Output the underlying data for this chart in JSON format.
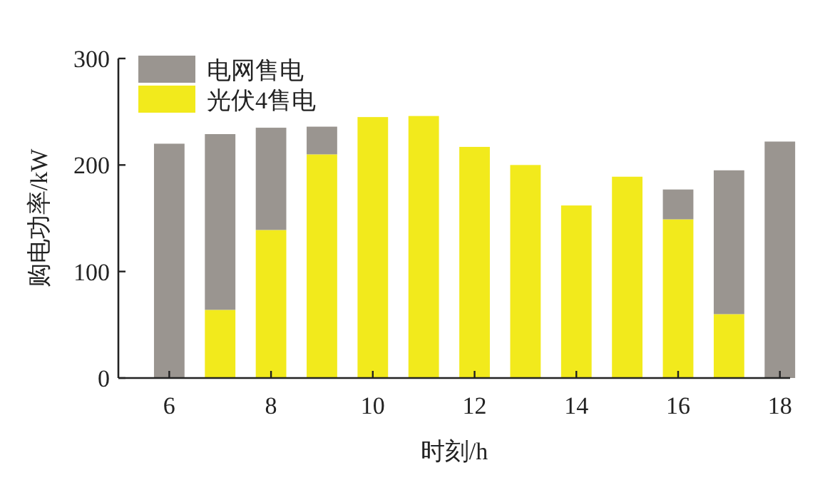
{
  "chart_data": {
    "type": "bar",
    "stacked": true,
    "xlabel": "时刻/h",
    "ylabel": "购电功率/kW",
    "x": [
      6,
      7,
      8,
      9,
      10,
      11,
      12,
      13,
      14,
      15,
      16,
      17,
      18
    ],
    "xlim": [
      5,
      18.2
    ],
    "xticks": [
      6,
      8,
      10,
      12,
      14,
      16,
      18
    ],
    "ylim": [
      0,
      300
    ],
    "yticks": [
      0,
      100,
      200,
      300
    ],
    "legend": "top left",
    "grid": false,
    "series": [
      {
        "name": "光伏4售电",
        "color": "#f2ea1c",
        "values": [
          0,
          64,
          139,
          210,
          245,
          246,
          217,
          200,
          162,
          189,
          149,
          60,
          0
        ]
      },
      {
        "name": "电网售电",
        "color": "#9a9590",
        "values": [
          220,
          165,
          96,
          26,
          0,
          0,
          0,
          0,
          0,
          0,
          28,
          135,
          222
        ]
      }
    ]
  }
}
